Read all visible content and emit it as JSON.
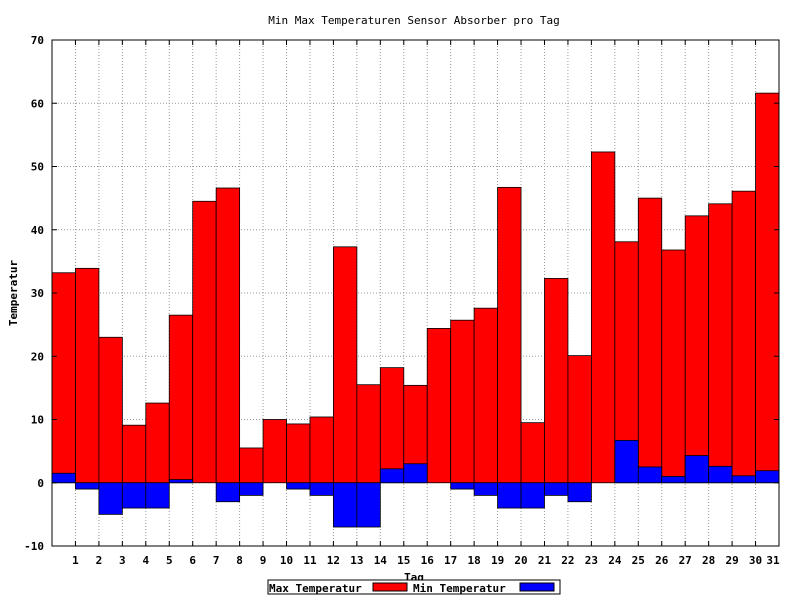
{
  "chart_data": {
    "type": "bar",
    "title": "Min Max Temperaturen Sensor Absorber pro Tag",
    "xlabel": "Tag",
    "ylabel": "Temperatur",
    "ylim": [
      -10,
      70
    ],
    "y_ticks": [
      -10,
      0,
      10,
      20,
      30,
      40,
      50,
      60,
      70
    ],
    "grid": true,
    "legend": "bottom-center",
    "categories": [
      "1",
      "2",
      "3",
      "4",
      "5",
      "6",
      "7",
      "8",
      "9",
      "10",
      "11",
      "12",
      "13",
      "14",
      "15",
      "16",
      "17",
      "18",
      "19",
      "20",
      "21",
      "22",
      "23",
      "24",
      "25",
      "26",
      "27",
      "28",
      "29",
      "30",
      "31"
    ],
    "series": [
      {
        "name": "Max Temperatur",
        "color": "#ff0000",
        "values": [
          33.2,
          33.9,
          23.0,
          9.1,
          12.6,
          26.5,
          44.5,
          46.6,
          5.5,
          10.0,
          9.3,
          10.4,
          37.3,
          15.5,
          18.2,
          15.4,
          24.4,
          25.7,
          27.6,
          46.7,
          9.5,
          32.3,
          20.1,
          52.3,
          38.1,
          45.0,
          36.8,
          42.2,
          44.1,
          46.1,
          61.6
        ]
      },
      {
        "name": "Min Temperatur",
        "color": "#0000ff",
        "values": [
          1.5,
          -1.0,
          -5.0,
          -4.0,
          -4.0,
          0.5,
          0.0,
          -3.0,
          -2.0,
          0.0,
          -1.0,
          -2.0,
          -7.0,
          -7.0,
          2.2,
          3.0,
          0.0,
          -1.0,
          -2.0,
          -4.0,
          -4.0,
          -2.0,
          -3.0,
          0.0,
          6.7,
          2.5,
          1.0,
          4.3,
          2.6,
          1.1,
          1.9
        ]
      }
    ]
  }
}
